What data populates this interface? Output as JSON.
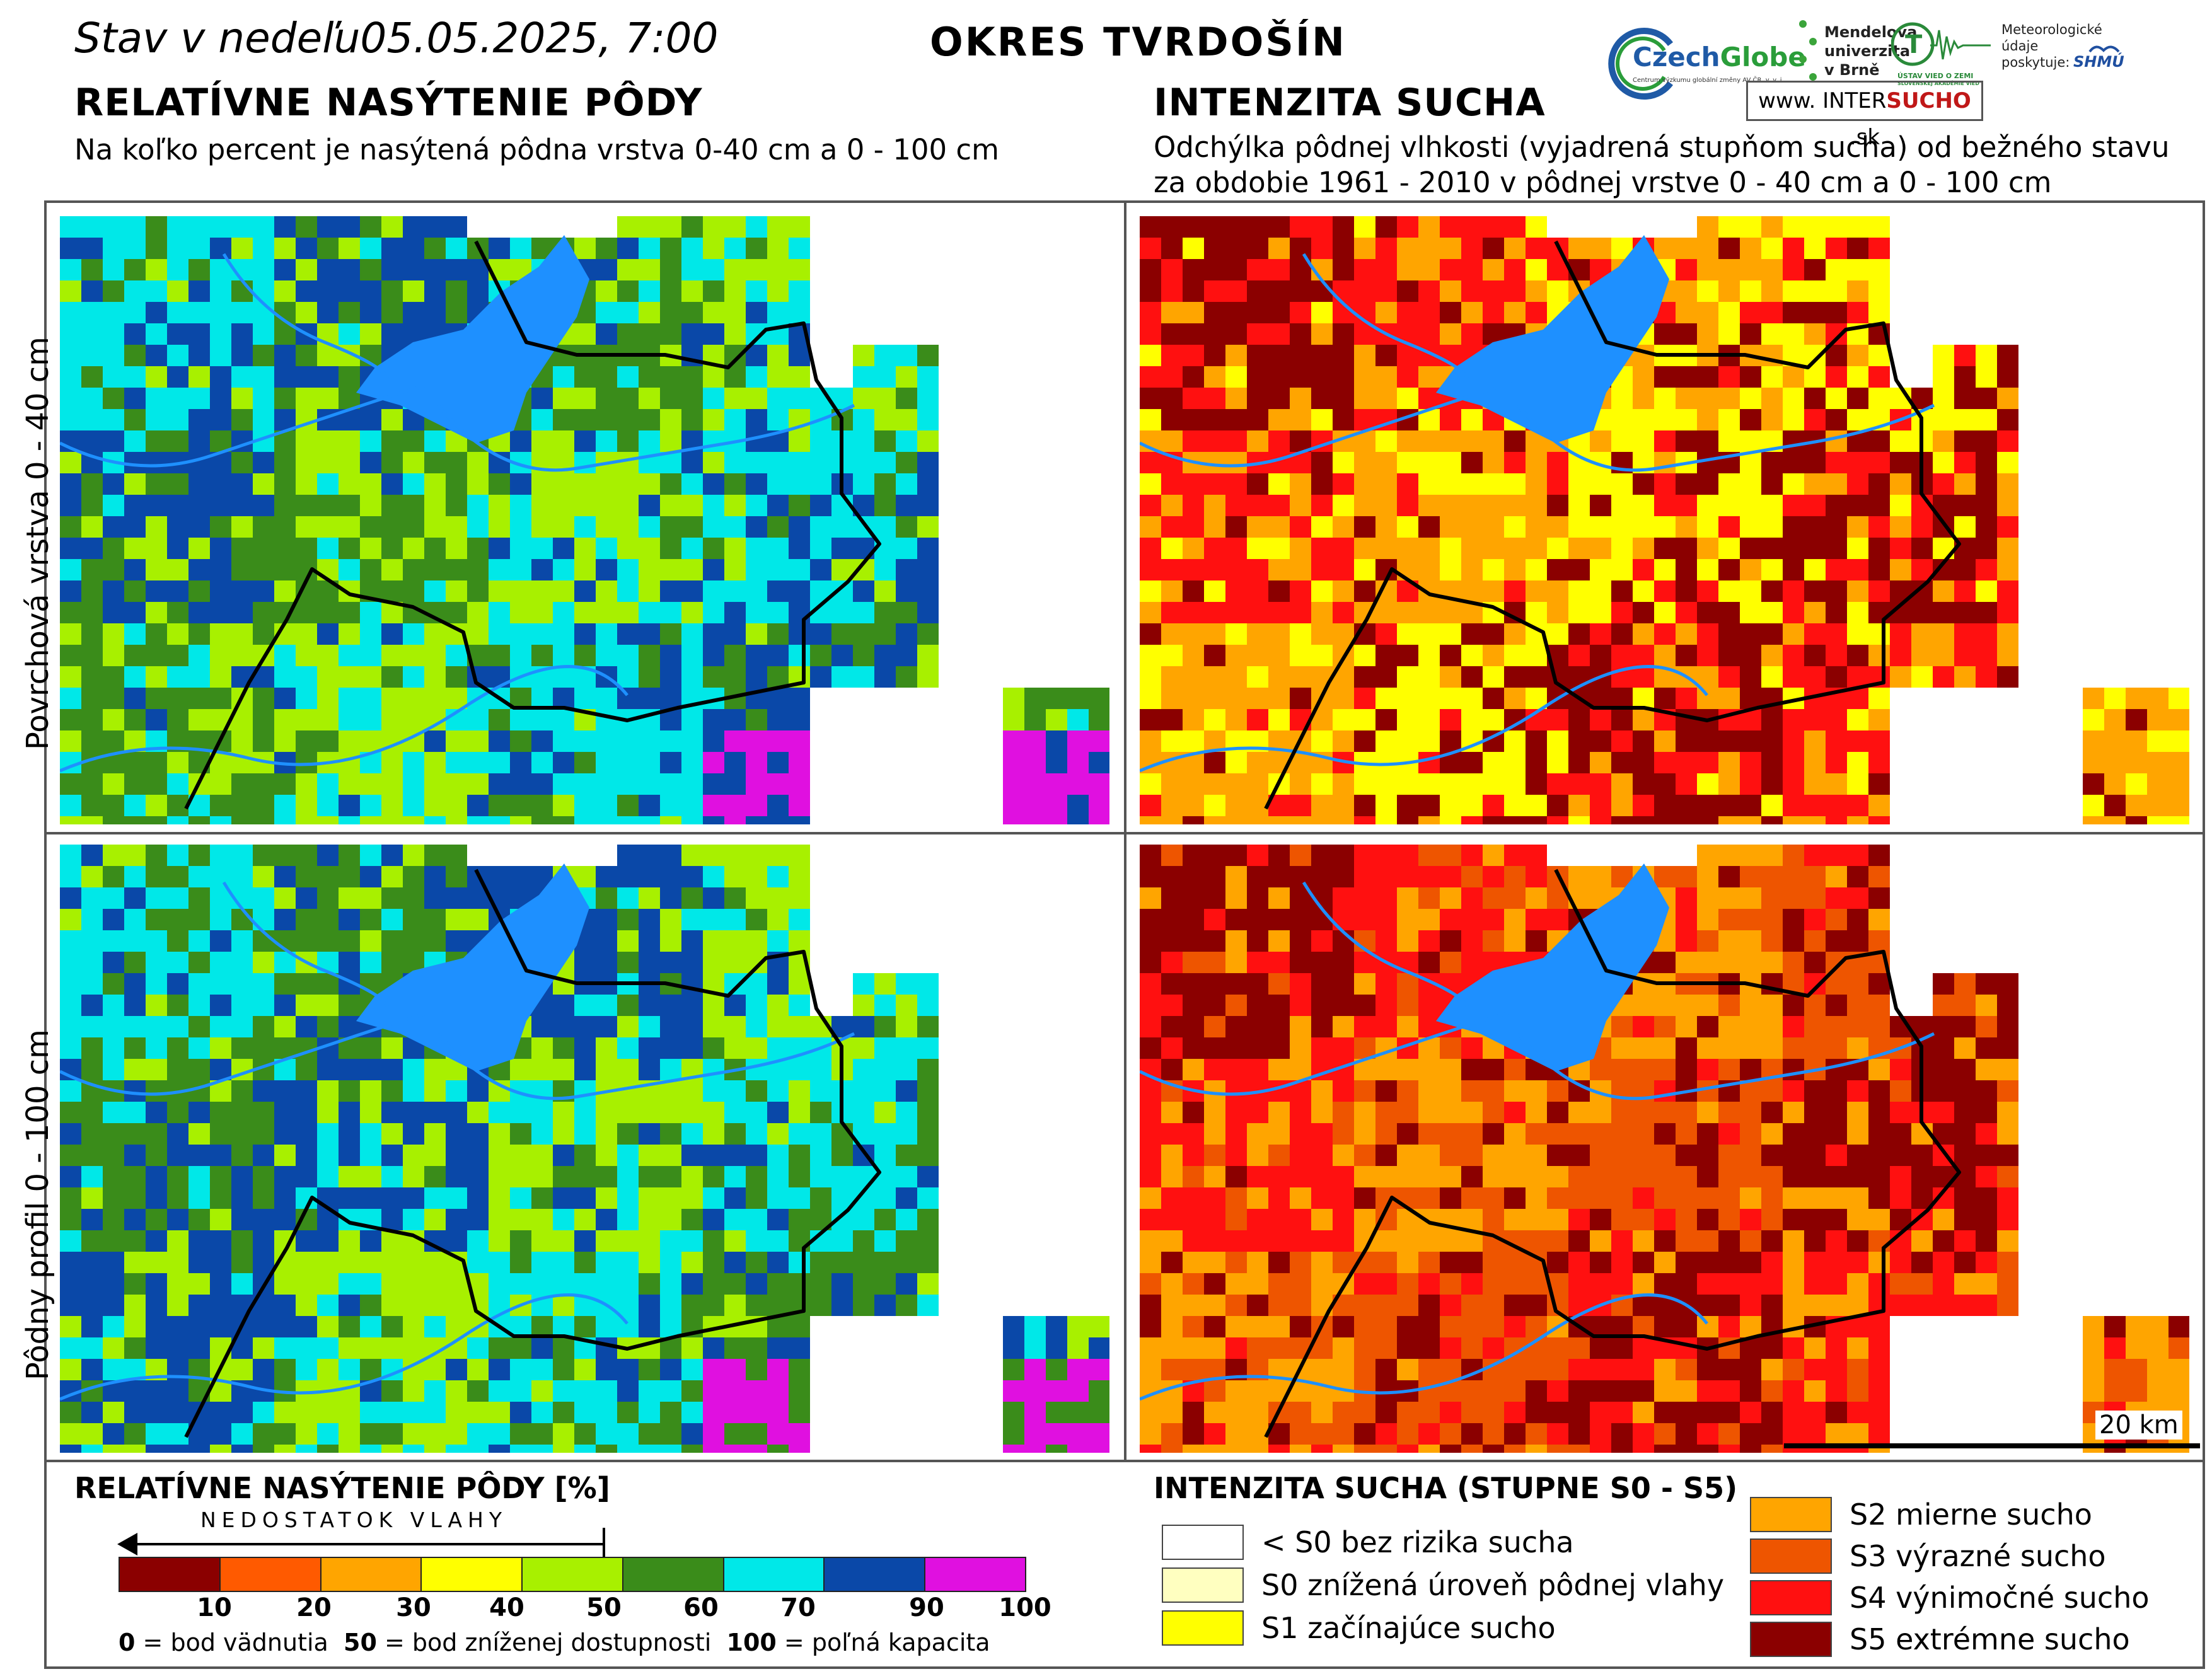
{
  "header": {
    "state_label": "Stav v nedeľu",
    "datetime": "05.05.2025, 7:00",
    "district": "OKRES  TVRDOŠÍN"
  },
  "left_section": {
    "title": "RELATÍVNE NASÝTENIE PÔDY",
    "subtitle": "Na koľko percent je nasýtená pôdna vrstva 0-40 cm a 0 - 100 cm"
  },
  "right_section": {
    "title": "INTENZITA SUCHA",
    "subtitle_line1": "Odchýlka pôdnej vlhkosti (vyjadrená stupňom sucha) od bežného stavu",
    "subtitle_line2": "za obdobie 1961 - 2010 v pôdnej vrstve 0 - 40 cm a 0 - 100 cm"
  },
  "logos": {
    "czechglobe_a": "Czech",
    "czechglobe_b": "Globe",
    "czechglobe_sub": "Centrum výzkumu globální změny AV ČR, v. v. i.",
    "mendelu": "Mendelova univerzita v Brně",
    "uvz": "ÚSTAV VIED O ZEMI",
    "uvz_sub": "SLOVENSKEJ AKADÉMIE VIED",
    "met_provider": "Meteorologické údaje poskytuje:",
    "shmu": "SHMÚ",
    "intersucho_a": "www.  INTER",
    "intersucho_b": "SUCHO",
    "intersucho_c": " .sk"
  },
  "row_labels": {
    "top": "Povrchová vrstva 0 - 40 cm",
    "bottom": "Pôdny profil 0 - 100 cm"
  },
  "scale": {
    "label": "20 km"
  },
  "saturation_legend": {
    "title": "RELATÍVNE NASÝTENIE PÔDY [%]",
    "arrow_label": "NEDOSTATOK VLAHY",
    "colors": [
      "#8b0000",
      "#ff5a00",
      "#ffa500",
      "#ffff00",
      "#a8f000",
      "#3a8c1a",
      "#00e8e8",
      "#0a48a8",
      "#e010e0"
    ],
    "ticks": [
      "10",
      "20",
      "30",
      "40",
      "50",
      "60",
      "70",
      "90",
      "100"
    ],
    "caption_0": "0",
    "caption_0_text": " = bod vädnutia  ",
    "caption_50": "50",
    "caption_50_text": " = bod zníženej dostupnosti  ",
    "caption_100": "100",
    "caption_100_text": " = poľná kapacita"
  },
  "drought_legend": {
    "title": "INTENZITA SUCHA (STUPNE S0 - S5)",
    "items": [
      {
        "label": "< S0 bez rizika sucha",
        "color": "#ffffff"
      },
      {
        "label": "S0 znížená úroveň pôdnej vlahy",
        "color": "#ffffc0"
      },
      {
        "label": "S1 začínajúce sucho",
        "color": "#ffff00"
      },
      {
        "label": "S2 mierne sucho",
        "color": "#ffa500"
      },
      {
        "label": "S3 výrazné sucho",
        "color": "#ee5500"
      },
      {
        "label": "S4 výnimočné sucho",
        "color": "#ff1010"
      },
      {
        "label": "S5 extrémne sucho",
        "color": "#8b0000"
      }
    ]
  },
  "map_colors": {
    "water": "#1e90ff",
    "border": "#000000",
    "saturation_top": [
      "#00e8e8",
      "#0a48a8",
      "#3a8c1a",
      "#a8f000"
    ],
    "saturation_bottom": [
      "#00e8e8",
      "#3a8c1a",
      "#0a48a8",
      "#a8f000"
    ],
    "drought_top": [
      "#8b0000",
      "#ff1010",
      "#ffa500",
      "#ffff00"
    ],
    "drought_bottom": [
      "#8b0000",
      "#ff1010",
      "#ffa500",
      "#ee5500"
    ]
  }
}
